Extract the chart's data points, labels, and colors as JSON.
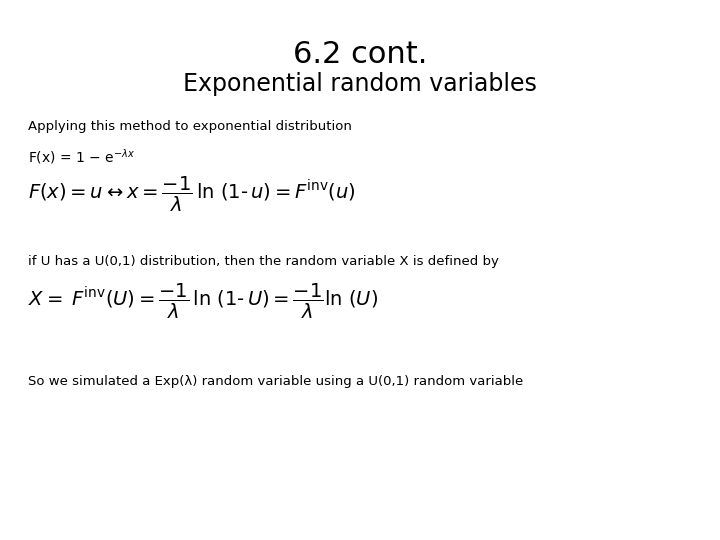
{
  "title": "6.2 cont.",
  "subtitle": "Exponential random variables",
  "line1": "Applying this method to exponential distribution",
  "line2": "if U has a U(0,1) distribution, then the random variable X is defined by",
  "line3": "So we simulated a Exp(λ) random variable using a U(0,1) random variable",
  "bg_color": "#ffffff",
  "text_color": "#000000",
  "title_fontsize": 22,
  "subtitle_fontsize": 17,
  "body_fontsize": 10,
  "formula_fontsize": 14,
  "small_fontsize": 9.5
}
